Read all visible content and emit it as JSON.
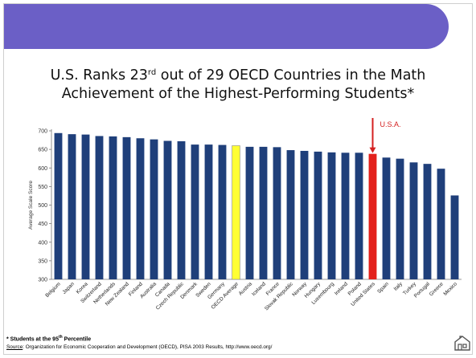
{
  "slide": {
    "title_line1_pre": "U.S. Ranks 23",
    "title_sup": "rd",
    "title_line1_post": " out of 29 OECD Countries in the Math",
    "title_line2": "Achievement of the Highest-Performing Students*",
    "colors": {
      "banner": "#6b5fc6",
      "bar": "#1f3f7a",
      "usa_bar": "#e3211c",
      "oecd_bar": "#ffff33",
      "callout": "#d42020"
    }
  },
  "footnote": {
    "pre": "* Students at the 95",
    "sup": "th",
    "post": " Percentile"
  },
  "source": {
    "label": "Source",
    "text": ": Organization for Economic Cooperation and Development (OECD), PISA 2003 Results, http://www.oecd.org/"
  },
  "chart_data": {
    "type": "bar",
    "title": "U.S. Ranks 23rd out of 29 OECD Countries in the Math Achievement of the Highest-Performing Students*",
    "ylabel": "Average Scale Score",
    "xlabel": "",
    "ylim": [
      300,
      700
    ],
    "yticks": [
      300,
      350,
      400,
      450,
      500,
      550,
      600,
      650,
      700
    ],
    "grid": false,
    "categories": [
      "Belgium",
      "Japan",
      "Korea",
      "Switzerland",
      "Netherlands",
      "New Zealand",
      "Finland",
      "Australia",
      "Canada",
      "Czech Republic",
      "Denmark",
      "Sweden",
      "Germany",
      "OECD Average",
      "Austria",
      "Iceland",
      "France",
      "Slovak Republic",
      "Norway",
      "Hungary",
      "Luxembourg",
      "Ireland",
      "Poland",
      "United States",
      "Spain",
      "Italy",
      "Turkey",
      "Portugal",
      "Greece",
      "Mexico"
    ],
    "values": [
      694,
      691,
      690,
      686,
      685,
      683,
      680,
      677,
      673,
      672,
      663,
      663,
      662,
      660,
      657,
      657,
      656,
      648,
      646,
      644,
      642,
      641,
      641,
      638,
      628,
      625,
      615,
      611,
      598,
      526
    ],
    "highlight": {
      "United States": "usa",
      "OECD Average": "oecd"
    },
    "annotation": {
      "label": "U.S.A.",
      "target": "United States"
    }
  }
}
